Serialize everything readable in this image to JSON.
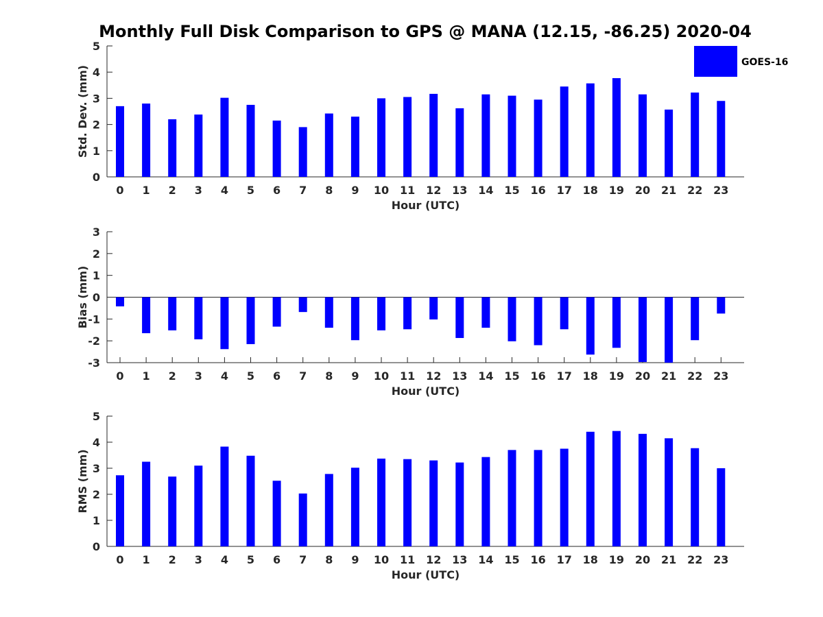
{
  "title": "Monthly Full Disk Comparison to GPS @ MANA (12.15, -86.25) 2020-04",
  "legend": {
    "label": "GOES-16",
    "color": "#0000ff",
    "placement": "top-right"
  },
  "bar_color": "#0000ff",
  "chart_data": [
    {
      "type": "bar",
      "xlabel": "Hour (UTC)",
      "ylabel": "Std. Dev. (mm)",
      "ylim": [
        0,
        5
      ],
      "yticks": [
        0,
        1,
        2,
        3,
        4,
        5
      ],
      "categories": [
        "0",
        "1",
        "2",
        "3",
        "4",
        "5",
        "6",
        "7",
        "8",
        "9",
        "10",
        "11",
        "12",
        "13",
        "14",
        "15",
        "16",
        "17",
        "18",
        "19",
        "20",
        "21",
        "22",
        "23"
      ],
      "series": [
        {
          "name": "GOES-16",
          "values": [
            2.7,
            2.8,
            2.2,
            2.38,
            3.02,
            2.75,
            2.15,
            1.9,
            2.42,
            2.3,
            3.0,
            3.05,
            3.17,
            2.62,
            3.15,
            3.1,
            2.95,
            3.45,
            3.57,
            3.77,
            3.15,
            2.57,
            3.22,
            2.9
          ]
        }
      ]
    },
    {
      "type": "bar",
      "xlabel": "Hour (UTC)",
      "ylabel": "Bias (mm)",
      "ylim": [
        -3,
        3
      ],
      "yticks": [
        -3,
        -2,
        -1,
        0,
        1,
        2,
        3
      ],
      "categories": [
        "0",
        "1",
        "2",
        "3",
        "4",
        "5",
        "6",
        "7",
        "8",
        "9",
        "10",
        "11",
        "12",
        "13",
        "14",
        "15",
        "16",
        "17",
        "18",
        "19",
        "20",
        "21",
        "22",
        "23"
      ],
      "series": [
        {
          "name": "GOES-16",
          "values": [
            -0.42,
            -1.65,
            -1.52,
            -1.93,
            -2.38,
            -2.15,
            -1.35,
            -0.68,
            -1.4,
            -1.97,
            -1.52,
            -1.47,
            -1.02,
            -1.87,
            -1.4,
            -2.02,
            -2.2,
            -1.47,
            -2.63,
            -2.32,
            -2.97,
            -3.0,
            -1.97,
            -0.75
          ]
        }
      ]
    },
    {
      "type": "bar",
      "xlabel": "Hour (UTC)",
      "ylabel": "RMS (mm)",
      "ylim": [
        0,
        5
      ],
      "yticks": [
        0,
        1,
        2,
        3,
        4,
        5
      ],
      "categories": [
        "0",
        "1",
        "2",
        "3",
        "4",
        "5",
        "6",
        "7",
        "8",
        "9",
        "10",
        "11",
        "12",
        "13",
        "14",
        "15",
        "16",
        "17",
        "18",
        "19",
        "20",
        "21",
        "22",
        "23"
      ],
      "series": [
        {
          "name": "GOES-16",
          "values": [
            2.73,
            3.25,
            2.68,
            3.1,
            3.83,
            3.48,
            2.52,
            2.03,
            2.78,
            3.02,
            3.37,
            3.35,
            3.3,
            3.22,
            3.43,
            3.7,
            3.7,
            3.75,
            4.4,
            4.43,
            4.32,
            4.15,
            3.77,
            3.0
          ]
        }
      ]
    }
  ]
}
